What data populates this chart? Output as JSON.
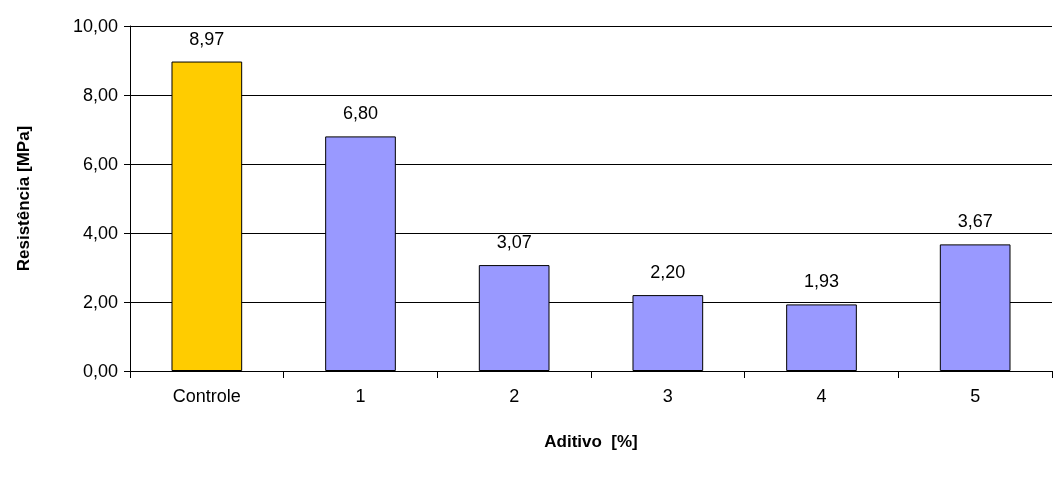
{
  "chart_data": {
    "type": "bar",
    "xlabel": "Aditivo  [%]",
    "ylabel": "Resistência [MPa]",
    "categories": [
      "Controle",
      "1",
      "2",
      "3",
      "4",
      "5"
    ],
    "values": [
      8.97,
      6.8,
      3.07,
      2.2,
      1.93,
      3.67
    ],
    "colors": [
      "#ffcc00",
      "#9999ff",
      "#9999ff",
      "#9999ff",
      "#9999ff",
      "#9999ff"
    ],
    "value_labels": [
      "8,97",
      "6,80",
      "3,07",
      "2,20",
      "1,93",
      "3,67"
    ],
    "ylim": [
      0,
      10
    ],
    "yticks": [
      {
        "value": 0,
        "label": "0,00"
      },
      {
        "value": 2,
        "label": "2,00"
      },
      {
        "value": 4,
        "label": "4,00"
      },
      {
        "value": 6,
        "label": "6,00"
      },
      {
        "value": 8,
        "label": "8,00"
      },
      {
        "value": 10,
        "label": "10,00"
      }
    ],
    "grid": "y"
  }
}
